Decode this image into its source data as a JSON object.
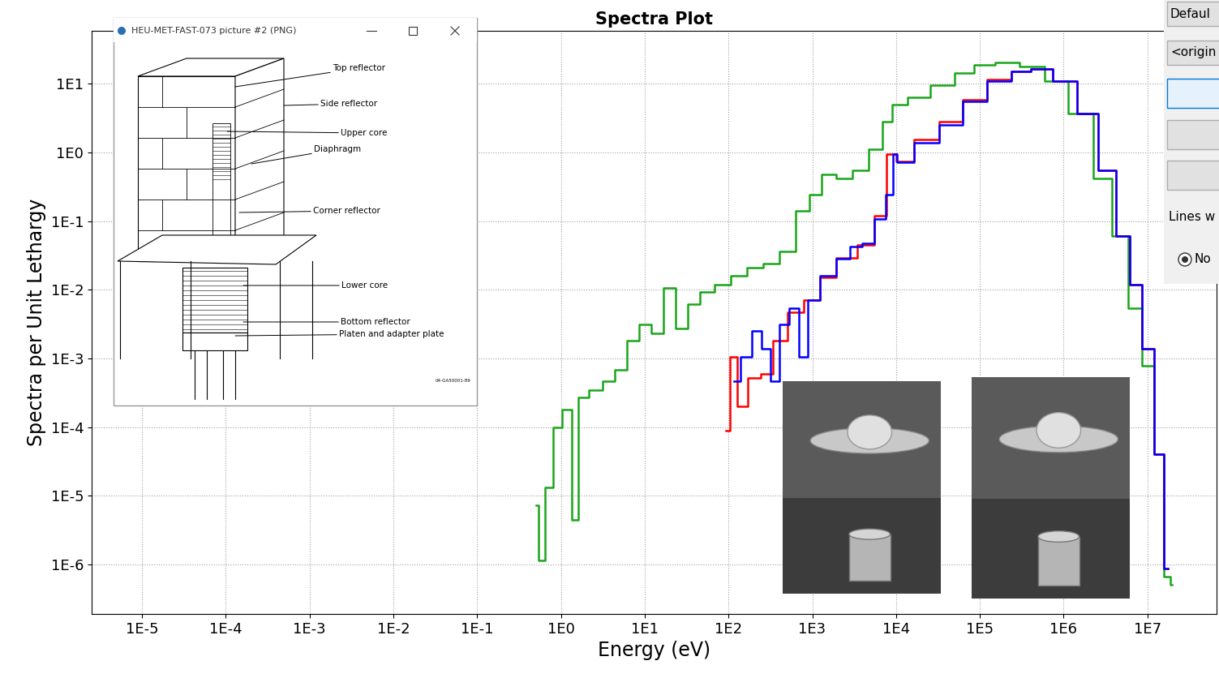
{
  "chart_data": {
    "type": "line",
    "title": "Spectra Plot",
    "x_label": "Energy (eV)",
    "y_label": "Spectra per Unit Lethargy",
    "log": true,
    "grid": true,
    "line_style": "steps",
    "xlim": [
      2.5e-06,
      67000000.0
    ],
    "ylim": [
      1.9e-07,
      59
    ],
    "xticks": [
      {
        "value": 1e-05,
        "label": "1E-5"
      },
      {
        "value": 0.0001,
        "label": "1E-4"
      },
      {
        "value": 0.001,
        "label": "1E-3"
      },
      {
        "value": 0.01,
        "label": "1E-2"
      },
      {
        "value": 0.1,
        "label": "1E-1"
      },
      {
        "value": 1,
        "label": "1E0"
      },
      {
        "value": 10,
        "label": "1E1"
      },
      {
        "value": 100,
        "label": "1E2"
      },
      {
        "value": 1000,
        "label": "1E3"
      },
      {
        "value": 10000,
        "label": "1E4"
      },
      {
        "value": 100000,
        "label": "1E5"
      },
      {
        "value": 1000000,
        "label": "1E6"
      },
      {
        "value": 10000000,
        "label": "1E7"
      }
    ],
    "yticks": [
      {
        "value": 1e-06,
        "label": "1E-6"
      },
      {
        "value": 1e-05,
        "label": "1E-5"
      },
      {
        "value": 0.0001,
        "label": "1E-4"
      },
      {
        "value": 0.001,
        "label": "1E-3"
      },
      {
        "value": 0.01,
        "label": "1E-2"
      },
      {
        "value": 0.1,
        "label": "1E-1"
      },
      {
        "value": 1,
        "label": "1E0"
      },
      {
        "value": 10,
        "label": "1E1"
      }
    ],
    "series": [
      {
        "color": "#1aa51a",
        "x": [
          0.5,
          0.59,
          0.71,
          0.89,
          1.16,
          1.51,
          1.69,
          2.64,
          3.68,
          5.14,
          7.2,
          10,
          14,
          19.6,
          27.5,
          38,
          54,
          83,
          131,
          204,
          319,
          500,
          776,
          1080,
          1500,
          2360,
          3700,
          5800,
          8100,
          10000,
          17600,
          34000,
          67000,
          105000,
          200000,
          400000,
          780000,
          1500000,
          3000000,
          4600000,
          7200000,
          10000000,
          14000000,
          17700000,
          19600000
        ],
        "values": [
          7.3e-06,
          1.15e-06,
          1.33e-05,
          0.0001,
          0.00018,
          4.5e-06,
          0.00027,
          0.00035,
          0.00046,
          0.00069,
          0.0018,
          0.0031,
          0.0023,
          0.0105,
          0.0027,
          0.0062,
          0.0092,
          0.012,
          0.016,
          0.021,
          0.024,
          0.036,
          0.14,
          0.24,
          0.48,
          0.42,
          0.55,
          1.1,
          2.8,
          4.9,
          6.4,
          9.6,
          14.4,
          19,
          20.5,
          18,
          11,
          3.7,
          0.42,
          0.061,
          0.0054,
          0.00079,
          4e-05,
          6.6e-07,
          5e-07
        ]
      },
      {
        "color": "#ff0000",
        "x": [
          93,
          117,
          135,
          204,
          284,
          398,
          620,
          977,
          1500,
          2360,
          4600,
          6500,
          8900,
          11000,
          22000,
          43000,
          83000,
          160000,
          320000,
          500000,
          970000,
          1900000,
          3300000,
          5100000,
          7200000,
          10000000,
          14000000,
          17700000
        ],
        "values": [
          8.9e-05,
          0.00105,
          0.0002,
          0.00052,
          0.0006,
          0.0018,
          0.0047,
          0.0071,
          0.015,
          0.029,
          0.045,
          0.12,
          0.95,
          0.75,
          1.55,
          2.8,
          5.9,
          11.5,
          15,
          16.6,
          11,
          3.7,
          0.55,
          0.061,
          0.012,
          0.0014,
          4e-05,
          8.7e-07
        ]
      },
      {
        "color": "#0000ff",
        "x": [
          117,
          163,
          214,
          284,
          355,
          447,
          620,
          776,
          977,
          1500,
          2360,
          3300,
          4600,
          6500,
          8700,
          9600,
          11000,
          22000,
          43000,
          83000,
          160000,
          320000,
          500000,
          970000,
          1900000,
          3300000,
          5100000,
          7200000,
          10000000,
          14000000,
          17700000
        ],
        "values": [
          0.00046,
          0.00105,
          0.0025,
          0.0014,
          0.00046,
          0.0031,
          0.0054,
          0.00105,
          0.0071,
          0.016,
          0.028,
          0.042,
          0.047,
          0.107,
          0.24,
          0.95,
          0.73,
          1.4,
          2.5,
          5.6,
          11,
          15,
          16.6,
          11,
          3.7,
          0.55,
          0.061,
          0.012,
          0.0014,
          4e-05,
          8.7e-07
        ]
      }
    ]
  },
  "inset_window": {
    "window_title": "HEU-MET-FAST-073 picture #2 (PNG)",
    "labels": [
      "Top reflector",
      "Side reflector",
      "Upper core",
      "Diaphragm",
      "Corner reflector",
      "Lower core",
      "Bottom reflector",
      "Platen and adapter plate"
    ],
    "drawing_number": "04-GA50001-89"
  },
  "panel": {
    "texts": [
      "Defaul",
      "<origin",
      "Lines w",
      "No"
    ]
  }
}
